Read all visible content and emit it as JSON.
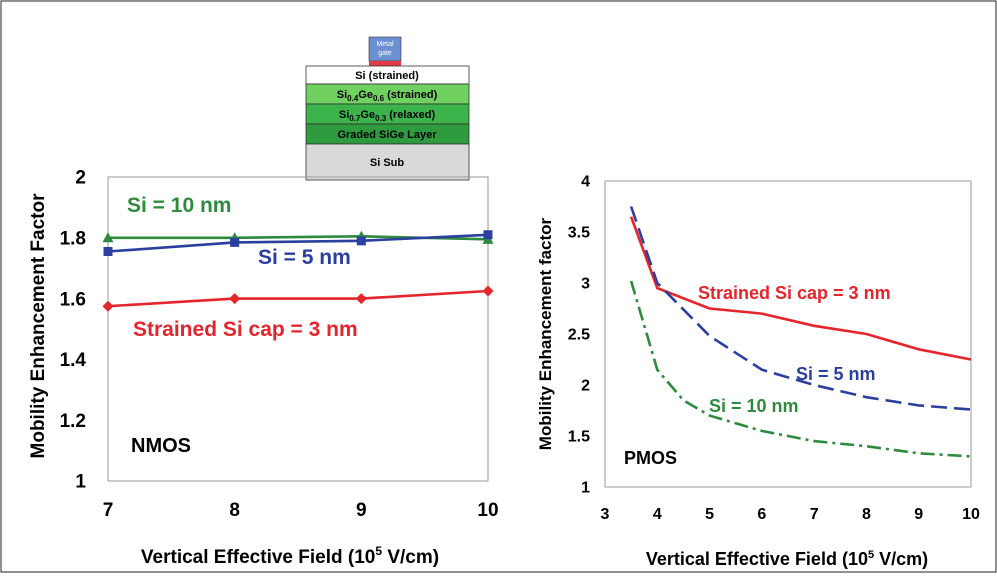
{
  "layer_stack": {
    "gate_label": "Metal gate",
    "layers": [
      {
        "label": "Si (strained)",
        "color": "#ffffff"
      },
      {
        "label": "Si0.4Ge0.6 (strained)",
        "base": "Si",
        "sub1": "0.4",
        "mid": "Ge",
        "sub2": "0.6",
        "rest": " (strained)",
        "color": "#70d060"
      },
      {
        "label": "Si0.7Ge0.3 (relaxed)",
        "base": "Si",
        "sub1": "0.7",
        "mid": "Ge",
        "sub2": "0.3",
        "rest": " (relaxed)",
        "color": "#3cb44b"
      },
      {
        "label": "Graded SiGe Layer",
        "color": "#2e9b3e"
      },
      {
        "label": "Si Sub",
        "color": "#d9d9d9"
      }
    ],
    "colors": {
      "gate": "#6b8fd0",
      "gate_oxide": "#e63946"
    }
  },
  "chart_data": [
    {
      "type": "line",
      "panel_label": "NMOS",
      "xlabel": "Vertical Effective Field (10",
      "xlabel_sup": "5",
      "xlabel_end": " V/cm)",
      "ylabel": "Mobility Enhancement Factor",
      "xlim": [
        7,
        10
      ],
      "ylim": [
        1,
        2
      ],
      "xticks": [
        7,
        8,
        9,
        10
      ],
      "yticks": [
        1,
        1.2,
        1.4,
        1.6,
        1.8,
        2
      ],
      "ytick_labels": [
        "1",
        "1.2",
        "1.4",
        "1.6",
        "1.8",
        "2"
      ],
      "series": [
        {
          "annotation": "Si = 10 nm",
          "color": "#2e8b3e",
          "marker": "triangle",
          "x": [
            7,
            8,
            9,
            10
          ],
          "y": [
            1.8,
            1.8,
            1.805,
            1.795
          ]
        },
        {
          "annotation": "Si = 5 nm",
          "color": "#2b3f9e",
          "marker": "square",
          "x": [
            7,
            8,
            9,
            10
          ],
          "y": [
            1.755,
            1.785,
            1.79,
            1.81
          ]
        },
        {
          "annotation": "Strained Si cap = 3 nm",
          "color": "#e5242b",
          "marker": "diamond",
          "x": [
            7,
            8,
            9,
            10
          ],
          "y": [
            1.575,
            1.6,
            1.6,
            1.625
          ]
        }
      ]
    },
    {
      "type": "line",
      "panel_label": "PMOS",
      "xlabel": "Vertical Effective Field (10",
      "xlabel_sup": "5",
      "xlabel_end": " V/cm)",
      "ylabel": "Mobility Enhancement factor",
      "xlim": [
        3,
        10
      ],
      "ylim": [
        1,
        4
      ],
      "xticks": [
        3,
        4,
        5,
        6,
        7,
        8,
        9,
        10
      ],
      "yticks": [
        1,
        1.5,
        2,
        2.5,
        3,
        3.5,
        4
      ],
      "ytick_labels": [
        "1",
        "1.5",
        "2",
        "2.5",
        "3",
        "3.5",
        "4"
      ],
      "series": [
        {
          "annotation": "Strained Si cap = 3 nm",
          "color": "#e5242b",
          "dash": "solid",
          "x": [
            3.5,
            4,
            5,
            6,
            7,
            8,
            9,
            10
          ],
          "y": [
            3.65,
            2.95,
            2.75,
            2.7,
            2.58,
            2.5,
            2.35,
            2.25
          ]
        },
        {
          "annotation": "Si = 5 nm",
          "color": "#2b3f9e",
          "dash": "dashed",
          "x": [
            3.5,
            4,
            5,
            6,
            7,
            8,
            9,
            10
          ],
          "y": [
            3.75,
            3.0,
            2.48,
            2.15,
            2.0,
            1.88,
            1.8,
            1.76
          ]
        },
        {
          "annotation": "Si = 10 nm",
          "color": "#2e8b3e",
          "dash": "dashdot",
          "x": [
            3.5,
            4,
            4.5,
            5,
            6,
            7,
            8,
            9,
            10
          ],
          "y": [
            3.02,
            2.15,
            1.85,
            1.7,
            1.55,
            1.45,
            1.4,
            1.33,
            1.3
          ]
        }
      ]
    }
  ]
}
